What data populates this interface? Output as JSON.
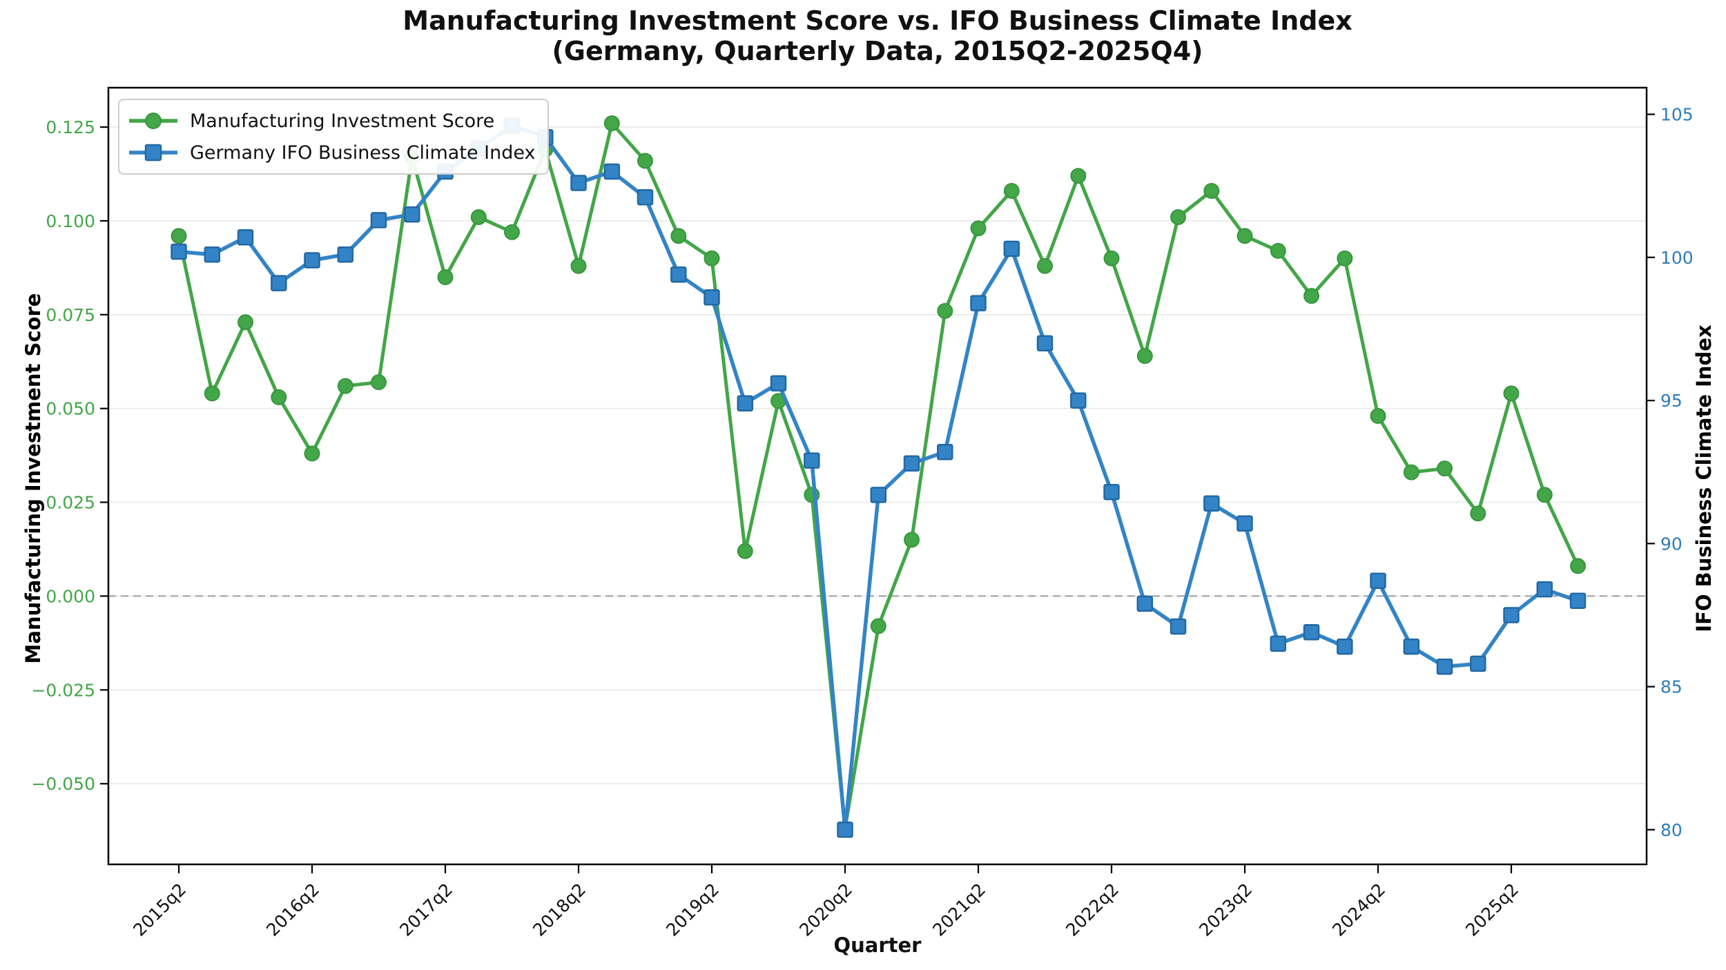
{
  "title": {
    "line1": "Manufacturing Investment Score vs. IFO Business Climate Index",
    "line2": "(Germany, Quarterly Data, 2015Q2-2025Q4)"
  },
  "chart_data": {
    "type": "line",
    "title": "Manufacturing Investment Score vs. IFO Business Climate Index (Germany, Quarterly Data, 2015Q2-2025Q4)",
    "xlabel": "Quarter",
    "grid": true,
    "legend_position": "upper-left",
    "zero_reference_line": 0.0,
    "x_categories": [
      "2015q2",
      "2015q3",
      "2015q4",
      "2016q1",
      "2016q2",
      "2016q3",
      "2016q4",
      "2017q1",
      "2017q2",
      "2017q3",
      "2017q4",
      "2018q1",
      "2018q2",
      "2018q3",
      "2018q4",
      "2019q1",
      "2019q2",
      "2019q3",
      "2019q4",
      "2020q1",
      "2020q2",
      "2020q3",
      "2020q4",
      "2021q1",
      "2021q2",
      "2021q3",
      "2021q4",
      "2022q1",
      "2022q2",
      "2022q3",
      "2022q4",
      "2023q1",
      "2023q2",
      "2023q3",
      "2023q4",
      "2024q1",
      "2024q2",
      "2024q3",
      "2024q4",
      "2025q1",
      "2025q2",
      "2025q3",
      "2025q4"
    ],
    "x_tick_every": 4,
    "series": [
      {
        "name": "Manufacturing Investment Score",
        "axis": "left",
        "marker": "circle",
        "color": "#43a648",
        "marker_edge": "#37963d",
        "values": [
          0.096,
          0.054,
          0.073,
          0.053,
          0.038,
          0.056,
          0.057,
          0.117,
          0.085,
          0.101,
          0.097,
          0.119,
          0.088,
          0.126,
          0.116,
          0.096,
          0.09,
          0.012,
          0.052,
          0.027,
          -0.062,
          -0.008,
          0.015,
          0.076,
          0.098,
          0.108,
          0.088,
          0.112,
          0.09,
          0.064,
          0.101,
          0.108,
          0.096,
          0.092,
          0.08,
          0.09,
          0.048,
          0.033,
          0.034,
          0.022,
          0.054,
          0.027,
          0.008
        ]
      },
      {
        "name": "Germany IFO Business Climate Index",
        "axis": "right",
        "marker": "square",
        "color": "#3384c6",
        "marker_edge": "#2268a4",
        "values": [
          100.2,
          100.1,
          100.7,
          99.1,
          99.9,
          100.1,
          101.3,
          101.5,
          103.0,
          103.8,
          104.6,
          104.2,
          102.6,
          103.0,
          102.1,
          99.4,
          98.6,
          94.9,
          95.6,
          92.9,
          80.0,
          91.7,
          92.8,
          93.2,
          98.4,
          100.3,
          97.0,
          95.0,
          91.8,
          87.9,
          87.1,
          91.4,
          90.7,
          86.5,
          86.9,
          86.4,
          88.7,
          86.4,
          85.7,
          85.8,
          87.5,
          88.4,
          88.0
        ]
      }
    ],
    "left_axis": {
      "label": "Manufacturing Investment Score",
      "color": "#43a648",
      "range": [
        -0.0715,
        0.1355
      ],
      "ticks": [
        {
          "label": "0.125",
          "value": 0.125
        },
        {
          "label": "0.100",
          "value": 0.1
        },
        {
          "label": "0.075",
          "value": 0.075
        },
        {
          "label": "0.050",
          "value": 0.05
        },
        {
          "label": "0.025",
          "value": 0.025
        },
        {
          "label": "0.000",
          "value": 0.0
        },
        {
          "label": "−0.025",
          "value": -0.025
        },
        {
          "label": "−0.050",
          "value": -0.05
        }
      ]
    },
    "right_axis": {
      "label": "IFO Business Climate Index",
      "color": "#2e7cb8",
      "range": [
        78.79,
        105.93
      ],
      "ticks": [
        {
          "label": "105",
          "value": 105
        },
        {
          "label": "100",
          "value": 100
        },
        {
          "label": "95",
          "value": 95
        },
        {
          "label": "90",
          "value": 90
        },
        {
          "label": "85",
          "value": 85
        },
        {
          "label": "80",
          "value": 80
        }
      ]
    },
    "style": {
      "grid_color": "#e8e8e8",
      "zero_line_color": "#a6a6a6",
      "spine_color": "#000000",
      "tick_color": "#000000",
      "background": "#ffffff"
    }
  }
}
